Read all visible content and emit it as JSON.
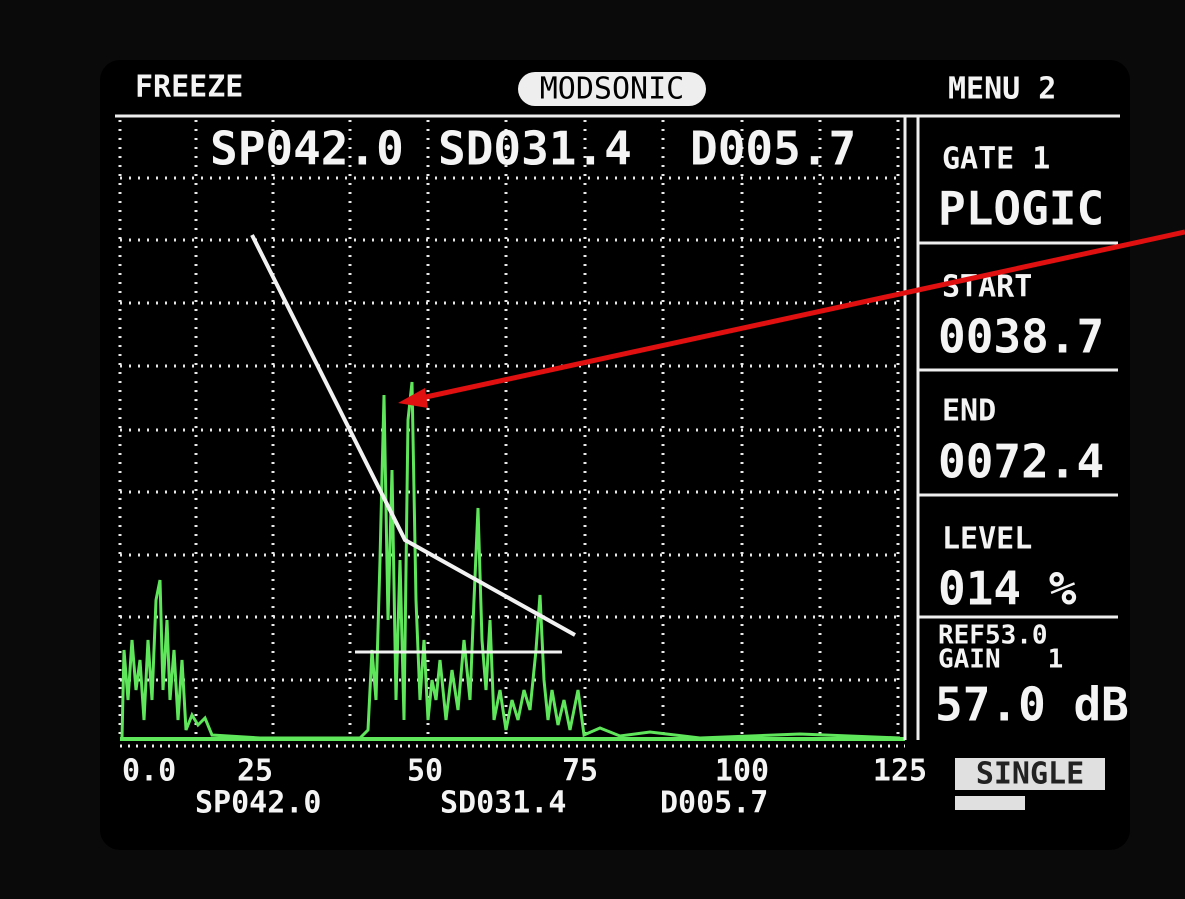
{
  "header": {
    "left": "FREEZE",
    "center": "MODSONIC",
    "right": "MENU 2"
  },
  "readout_top": [
    "SP042.0",
    "SD031.4",
    "D005.7"
  ],
  "panel": {
    "boxes": [
      {
        "label": "GATE 1",
        "value": "PLOGIC"
      },
      {
        "label": "START",
        "value": "0038.7"
      },
      {
        "label": "END",
        "value": "0072.4"
      },
      {
        "label": "LEVEL",
        "value": "014 %"
      }
    ],
    "ref": "REF53.0",
    "gain": "GAIN   1",
    "gain_db": "57.0 dB"
  },
  "x_axis_labels": [
    "0.0",
    "25",
    "50",
    "75",
    "100",
    "125"
  ],
  "mode": "SINGLE",
  "readout_bottom": [
    "SP042.0",
    "SD031.4",
    "D005.7"
  ]
}
